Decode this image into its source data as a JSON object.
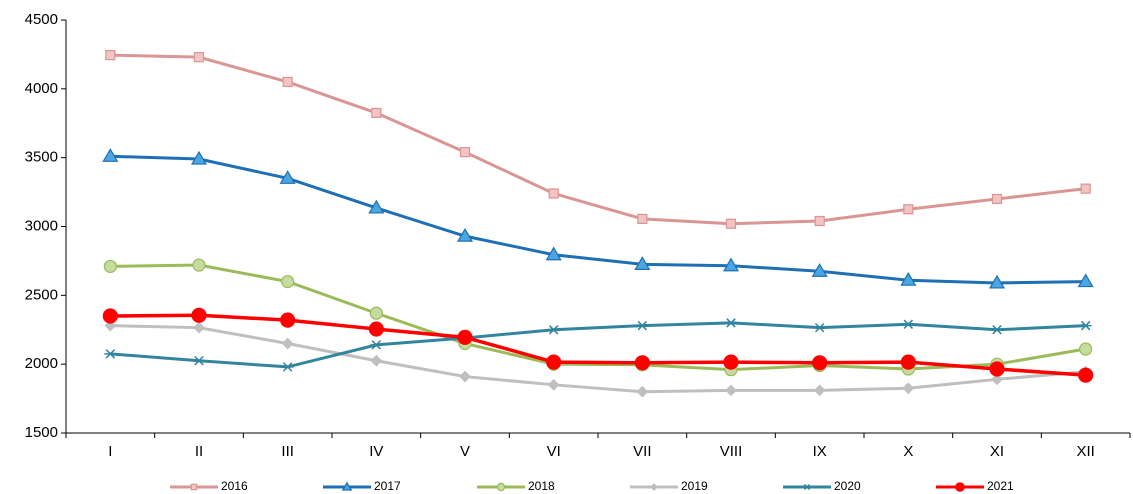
{
  "chart_data": {
    "type": "line",
    "categories": [
      "I",
      "II",
      "III",
      "IV",
      "V",
      "VI",
      "VII",
      "VIII",
      "IX",
      "X",
      "XI",
      "XII"
    ],
    "ylim": [
      1500,
      4500
    ],
    "yticks": [
      1500,
      2000,
      2500,
      3000,
      3500,
      4000,
      4500
    ],
    "grid": false,
    "legend": "bottom",
    "series": [
      {
        "name": "2016",
        "color": "#d99694",
        "marker": "square",
        "marker_fill": "#f2c4c4",
        "values": [
          4245,
          4230,
          4050,
          3825,
          3540,
          3240,
          3055,
          3020,
          3040,
          3125,
          3200,
          3275
        ]
      },
      {
        "name": "2017",
        "color": "#1f6fb5",
        "marker": "triangle",
        "marker_fill": "#4aa6e0",
        "values": [
          3510,
          3490,
          3350,
          3135,
          2930,
          2795,
          2725,
          2715,
          2675,
          2610,
          2590,
          2600
        ]
      },
      {
        "name": "2018",
        "color": "#9bbb59",
        "marker": "circle",
        "marker_fill": "#c6dc9f",
        "values": [
          2710,
          2720,
          2600,
          2370,
          2150,
          2000,
          1995,
          1960,
          1990,
          1965,
          2000,
          2110
        ]
      },
      {
        "name": "2019",
        "color": "#bfbfbf",
        "marker": "diamond",
        "marker_fill": "#bfbfbf",
        "values": [
          2280,
          2265,
          2150,
          2025,
          1910,
          1850,
          1800,
          1810,
          1810,
          1825,
          1890,
          1945
        ]
      },
      {
        "name": "2020",
        "color": "#31859c",
        "marker": "star",
        "marker_fill": "#31859c",
        "values": [
          2075,
          2025,
          1980,
          2140,
          2190,
          2250,
          2280,
          2300,
          2265,
          2290,
          2250,
          2280
        ]
      },
      {
        "name": "2021",
        "color": "#ff0000",
        "marker": "dot",
        "marker_fill": "#ff0000",
        "values": [
          2350,
          2355,
          2320,
          2255,
          2195,
          2015,
          2010,
          2015,
          2010,
          2015,
          1965,
          1920
        ]
      }
    ]
  }
}
